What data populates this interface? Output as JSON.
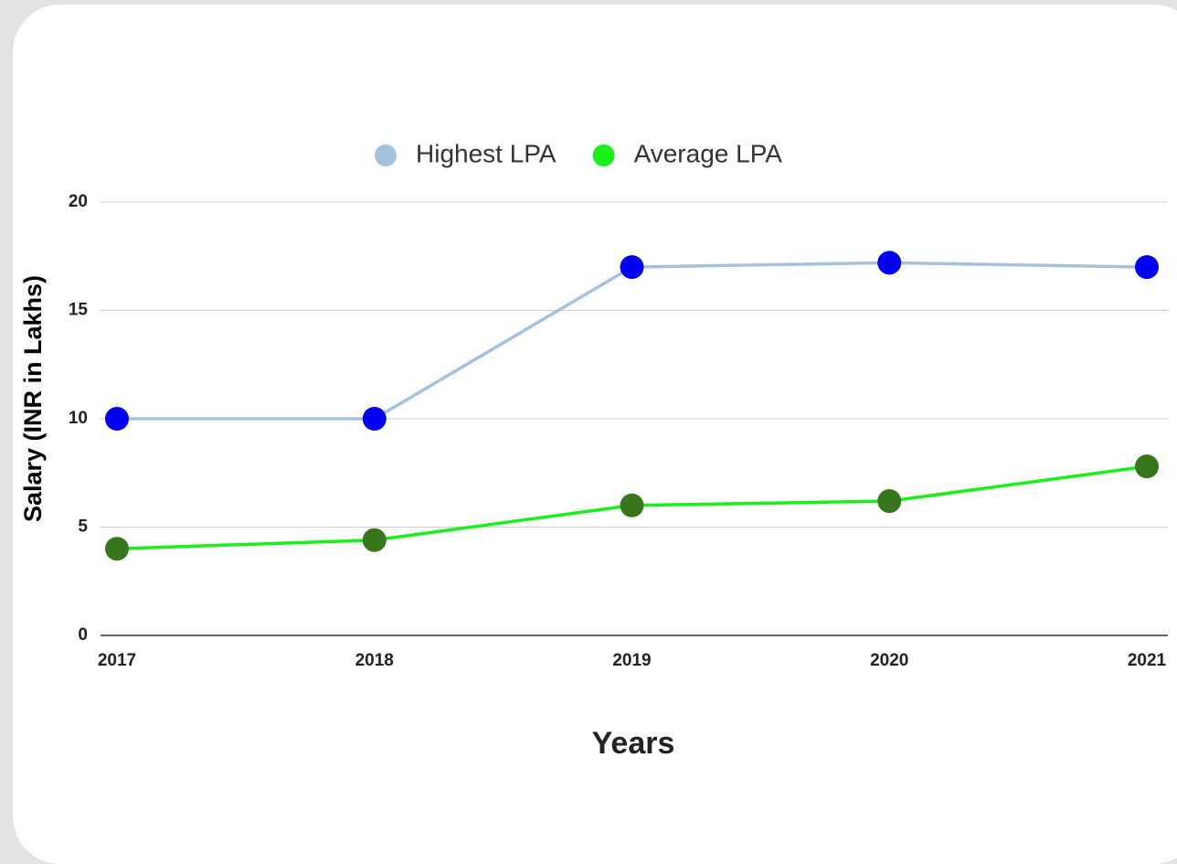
{
  "chart_data": {
    "type": "line",
    "categories": [
      "2017",
      "2018",
      "2019",
      "2020",
      "2021"
    ],
    "series": [
      {
        "name": "Highest LPA",
        "color": "#a4c2e0",
        "marker_color": "#0000ee",
        "values": [
          10,
          10,
          17,
          17.2,
          17
        ]
      },
      {
        "name": "Average LPA",
        "color": "#19ef19",
        "marker_color": "#38761d",
        "values": [
          4,
          4.4,
          6,
          6.2,
          7.8
        ]
      }
    ],
    "xlabel": "Years",
    "ylabel": "Salary  (INR in Lakhs)",
    "ylim": [
      0,
      20
    ],
    "yticks": [
      0,
      5,
      10,
      15,
      20
    ],
    "grid": true,
    "legend": "top"
  }
}
